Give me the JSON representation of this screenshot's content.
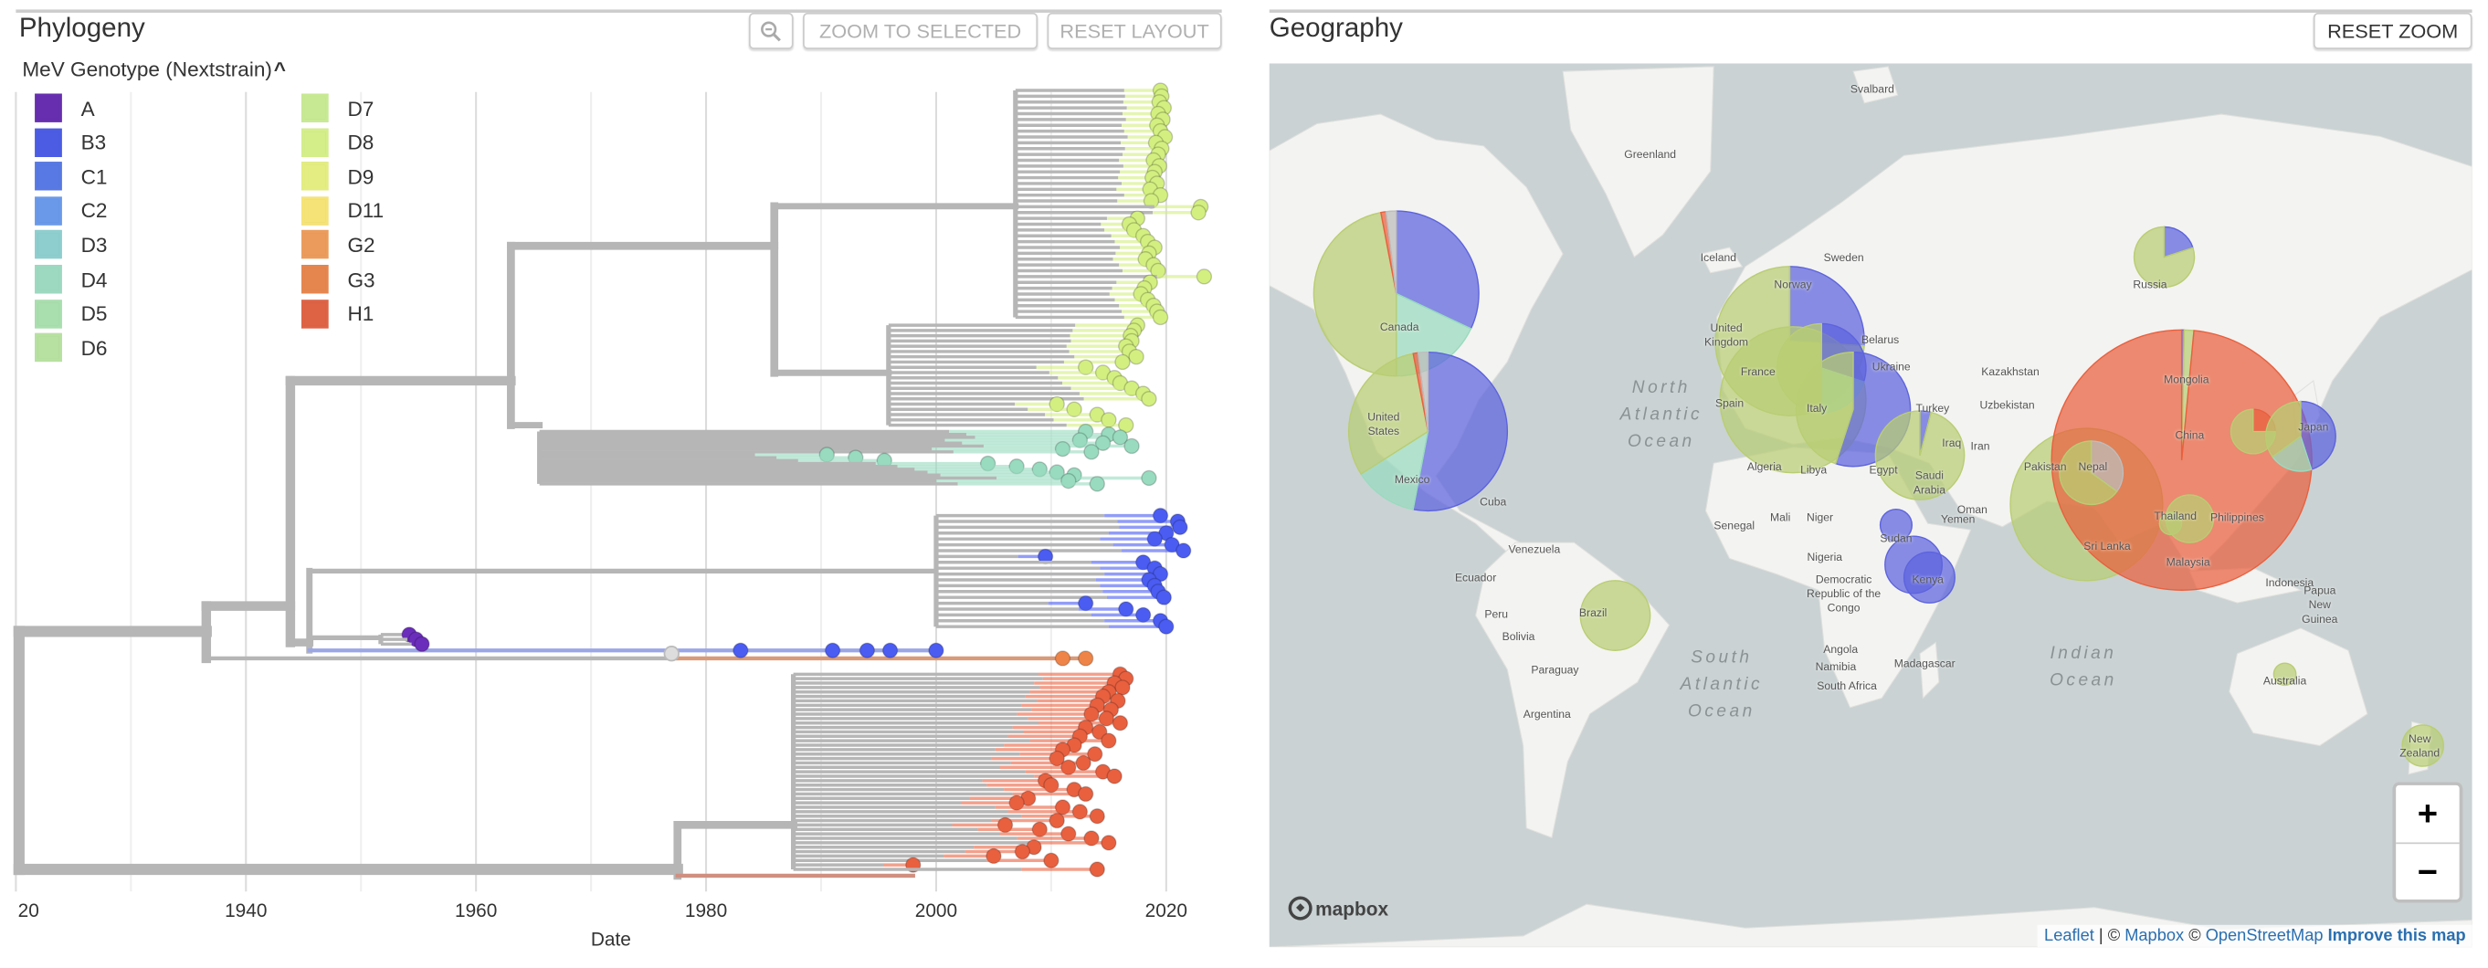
{
  "phylogeny": {
    "title": "Phylogeny",
    "zoom_out_icon": "zoom-out-icon",
    "zoom_to_selected": "ZOOM TO SELECTED",
    "reset_layout": "RESET LAYOUT"
  },
  "legend": {
    "title": "MeV Genotype (Nextstrain)",
    "collapse_icon": "chevron-up-icon",
    "items": [
      {
        "label": "A",
        "color": "#6b2dbb"
      },
      {
        "label": "B3",
        "color": "#4a5cf2"
      },
      {
        "label": "C1",
        "color": "#5479ef"
      },
      {
        "label": "C2",
        "color": "#6699f3"
      },
      {
        "label": "D3",
        "color": "#88d0d0"
      },
      {
        "label": "D4",
        "color": "#98dbbf"
      },
      {
        "label": "D5",
        "color": "#a5e0aa"
      },
      {
        "label": "D6",
        "color": "#b4e39a"
      },
      {
        "label": "D7",
        "color": "#c6ea8c"
      },
      {
        "label": "D8",
        "color": "#d3ef80"
      },
      {
        "label": "D9",
        "color": "#e3ee76"
      },
      {
        "label": "D11",
        "color": "#f7e36b"
      },
      {
        "label": "G2",
        "color": "#f29b53"
      },
      {
        "label": "G3",
        "color": "#ee8447"
      },
      {
        "label": "H1",
        "color": "#e9603f"
      }
    ]
  },
  "chart_data": {
    "type": "phylogenetic-tree",
    "xlabel": "Date",
    "x_ticks": [
      "20",
      "1940",
      "1960",
      "1980",
      "2000",
      "2020"
    ],
    "xlim": [
      1920,
      2025
    ],
    "grid": true,
    "branch_color": "#b5b5b5",
    "clades": [
      {
        "genotype": "D8",
        "tip_years": [
          2019.5,
          2019.6,
          2019.4,
          2019.8,
          2019.3,
          2019.7,
          2019.2,
          2019.5,
          2019.9,
          2019.1,
          2019.6,
          2019.3,
          2018.9,
          2019.4,
          2019.0,
          2018.8,
          2019.2,
          2018.6,
          2019.5,
          2018.7,
          2023.0,
          2022.8,
          2017.5,
          2016.8,
          2017.2,
          2018.0,
          2018.4,
          2019.0,
          2018.5,
          2018.2,
          2018.9,
          2019.3,
          2023.3,
          2018.6,
          2018.1,
          2017.8,
          2018.4,
          2018.9,
          2019.2,
          2019.5
        ]
      },
      {
        "genotype": "D8",
        "tip_years": [
          2017.5,
          2017.2,
          2016.9,
          2017.0,
          2016.5,
          2016.8,
          2017.4,
          2016.2,
          2013.0,
          2014.5,
          2015.5,
          2016.0,
          2017.0,
          2018.0,
          2018.5,
          2010.5,
          2012.0,
          2014.0,
          2015.0,
          2016.5
        ]
      },
      {
        "genotype": "D4",
        "tip_years": [
          2013.0,
          2015.0,
          2016.0,
          2012.5,
          2014.5,
          2017.0,
          2011.0,
          2013.5,
          1990.5,
          1993.0,
          1995.5,
          2004.5,
          2007.0,
          2009.0,
          2010.5,
          2012.0,
          2018.5,
          2011.5,
          2014.0
        ]
      },
      {
        "genotype": "B3",
        "tip_years": [
          2019.5,
          2021.0,
          2021.2,
          2020.0,
          2019.0,
          2020.5,
          2021.5,
          2009.5,
          2018.0,
          2019.0,
          2019.5,
          2018.5,
          2019.0,
          2019.3,
          2019.8,
          2013.0,
          2016.5,
          2018.0,
          2019.5,
          2020.0
        ]
      },
      {
        "genotype": "A",
        "tip_years": [
          1954.2,
          1954.8,
          1955.3
        ]
      },
      {
        "genotype": "B3",
        "tip_years": [
          1983.0,
          1991.0,
          1994.0,
          1996.0,
          2000.0
        ]
      },
      {
        "genotype": "G3",
        "tip_years": [
          2011.0,
          2013.0
        ]
      },
      {
        "genotype": "H1",
        "tip_years": [
          2016.0,
          2016.5,
          2015.5,
          2016.2,
          2015.0,
          2014.5,
          2015.8,
          2014.0,
          2015.2,
          2013.5,
          2014.8,
          2016.0,
          2013.0,
          2014.2,
          2012.5,
          2015.0,
          2012.0,
          2011.0,
          2013.8,
          2010.5,
          2012.8,
          2011.5,
          2014.5,
          2015.5,
          2009.5,
          2010.0,
          2012.0,
          2013.0,
          2008.0,
          2007.0,
          2011.0,
          2012.5,
          2014.0,
          2010.5,
          2006.0,
          2009.0,
          2011.5,
          2013.5,
          2015.0,
          2008.5,
          2007.5,
          2005.0,
          2010.0,
          1998.0,
          2014.0
        ]
      }
    ]
  },
  "geography": {
    "title": "Geography",
    "reset_zoom": "RESET ZOOM",
    "zoom_in": "+",
    "zoom_out": "−",
    "mapbox_logo": "mapbox",
    "attribution": {
      "leaflet": "Leaflet",
      "sep": " | © ",
      "mapbox": "Mapbox",
      "osm_prefix": " © ",
      "osm": "OpenStreetMap",
      "improve": " Improve this map"
    },
    "ocean_color": "#cad2d3",
    "land_color": "#f3f3f1",
    "labels": [
      "Svalbard",
      "Greenland",
      "Iceland",
      "Sweden",
      "Norway",
      "Russia",
      "Canada",
      "Belarus",
      "Ukraine",
      "Kazakhstan",
      "North Atlantic Ocean",
      "Mongolia",
      "United Kingdom",
      "France",
      "Spain",
      "Italy",
      "Uzbekistan",
      "United States",
      "Turkey",
      "Iraq",
      "Iran",
      "China",
      "Japan",
      "Algeria",
      "Libya",
      "Egypt",
      "Saudi Arabia",
      "Pakistan",
      "Nepal",
      "Mexico",
      "Cuba",
      "Oman",
      "Senegal",
      "Mali",
      "Niger",
      "Sudan",
      "Yemen",
      "Thailand",
      "Philippines",
      "Venezuela",
      "Nigeria",
      "Sri Lanka",
      "Malaysia",
      "Ecuador",
      "Democratic Republic of the Congo",
      "Kenya",
      "Indonesia",
      "Papua New Guinea",
      "Peru",
      "Brazil",
      "Bolivia",
      "Angola",
      "South Atlantic Ocean",
      "Indian Ocean",
      "Madagascar",
      "Namibia",
      "Paraguay",
      "Australia",
      "South Africa",
      "Argentina",
      "New Zealand"
    ],
    "pies": [
      {
        "location": "Canada",
        "slices": [
          {
            "genotype": "B3",
            "fraction": 0.32
          },
          {
            "genotype": "D4",
            "fraction": 0.18
          },
          {
            "genotype": "D8",
            "fraction": 0.47
          },
          {
            "genotype": "H1",
            "fraction": 0.01
          },
          {
            "genotype": "unknown",
            "fraction": 0.02
          }
        ]
      },
      {
        "location": "United States",
        "slices": [
          {
            "genotype": "B3",
            "fraction": 0.53
          },
          {
            "genotype": "D4",
            "fraction": 0.13
          },
          {
            "genotype": "D8",
            "fraction": 0.31
          },
          {
            "genotype": "H1",
            "fraction": 0.01
          },
          {
            "genotype": "unknown",
            "fraction": 0.02
          }
        ]
      },
      {
        "location": "United Kingdom",
        "slices": [
          {
            "genotype": "B3",
            "fraction": 0.26
          },
          {
            "genotype": "D8",
            "fraction": 0.74
          }
        ]
      },
      {
        "location": "Spain",
        "slices": [
          {
            "genotype": "D8",
            "fraction": 1.0
          }
        ]
      },
      {
        "location": "France",
        "slices": [
          {
            "genotype": "B3",
            "fraction": 0.3
          },
          {
            "genotype": "D4",
            "fraction": 0.2
          },
          {
            "genotype": "D8",
            "fraction": 0.5
          }
        ]
      },
      {
        "location": "Italy",
        "slices": [
          {
            "genotype": "B3",
            "fraction": 0.55
          },
          {
            "genotype": "D8",
            "fraction": 0.45
          }
        ]
      },
      {
        "location": "Russia",
        "slices": [
          {
            "genotype": "B3",
            "fraction": 0.2
          },
          {
            "genotype": "D8",
            "fraction": 0.8
          }
        ]
      },
      {
        "location": "Turkey",
        "slices": [
          {
            "genotype": "B3",
            "fraction": 0.04
          },
          {
            "genotype": "D8",
            "fraction": 0.96
          }
        ]
      },
      {
        "location": "Pakistan",
        "slices": [
          {
            "genotype": "D8",
            "fraction": 1.0
          }
        ]
      },
      {
        "location": "China",
        "slices": [
          {
            "genotype": "B3",
            "fraction": 0.003
          },
          {
            "genotype": "D8",
            "fraction": 0.012
          },
          {
            "genotype": "H1",
            "fraction": 0.985
          }
        ]
      },
      {
        "location": "Nepal",
        "slices": [
          {
            "genotype": "unknown",
            "fraction": 0.35
          },
          {
            "genotype": "D8",
            "fraction": 0.65
          }
        ]
      },
      {
        "location": "South Korea",
        "slices": [
          {
            "genotype": "H1",
            "fraction": 0.25
          },
          {
            "genotype": "D8",
            "fraction": 0.75
          }
        ]
      },
      {
        "location": "Japan",
        "slices": [
          {
            "genotype": "B3",
            "fraction": 0.45
          },
          {
            "genotype": "D4",
            "fraction": 0.2
          },
          {
            "genotype": "D8",
            "fraction": 0.35
          }
        ]
      },
      {
        "location": "Thailand",
        "slices": [
          {
            "genotype": "D8",
            "fraction": 1.0
          }
        ]
      },
      {
        "location": "Vietnam",
        "slices": [
          {
            "genotype": "D8",
            "fraction": 1.0
          }
        ]
      },
      {
        "location": "Sudan",
        "slices": [
          {
            "genotype": "B3",
            "fraction": 1.0
          }
        ]
      },
      {
        "location": "Democratic Republic of the Congo",
        "slices": [
          {
            "genotype": "B3",
            "fraction": 1.0
          }
        ]
      },
      {
        "location": "Kenya",
        "slices": [
          {
            "genotype": "B3",
            "fraction": 1.0
          }
        ]
      },
      {
        "location": "Brazil",
        "slices": [
          {
            "genotype": "D8",
            "fraction": 1.0
          }
        ]
      },
      {
        "location": "Australia",
        "slices": [
          {
            "genotype": "D8",
            "fraction": 1.0
          }
        ]
      },
      {
        "location": "New Zealand",
        "slices": [
          {
            "genotype": "D8",
            "fraction": 1.0
          }
        ]
      }
    ]
  }
}
